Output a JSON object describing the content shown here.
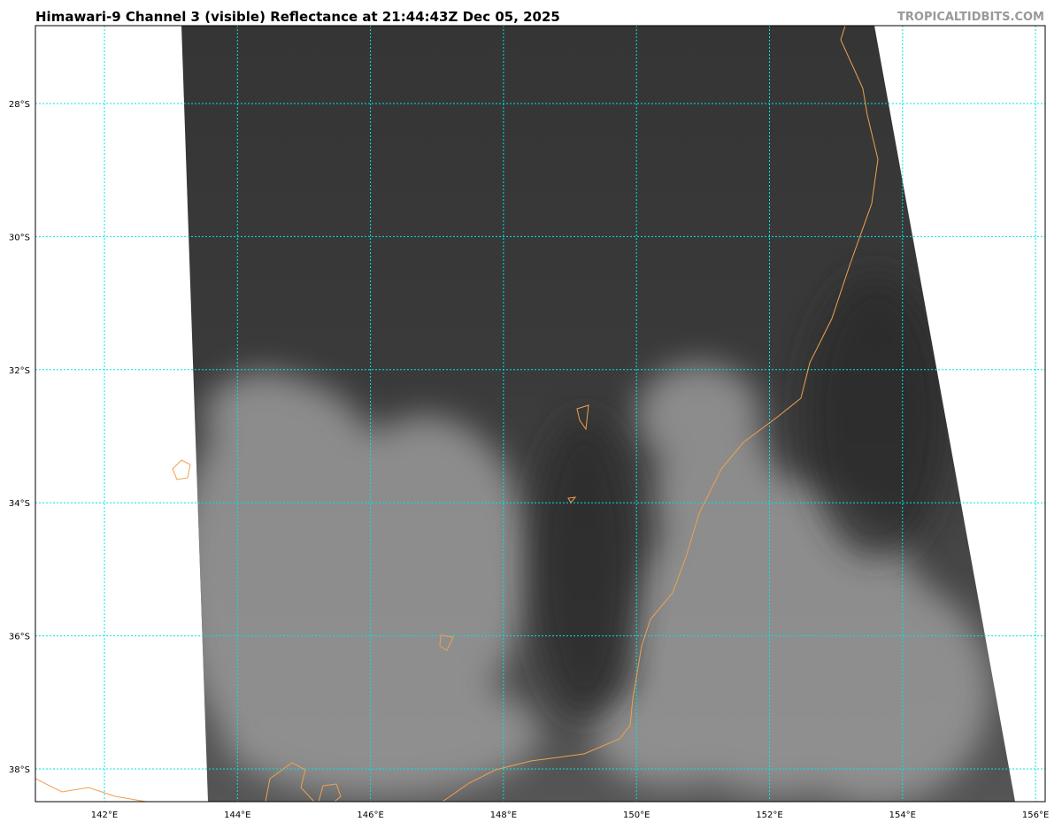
{
  "header": {
    "title": "Himawari-9 Channel 3 (visible) Reflectance at 21:44:43Z Dec 05, 2025",
    "brand": "TROPICALTIDBITS.COM"
  },
  "map": {
    "gridline_color": "#00e5e5",
    "coastline_color": "#f0a050",
    "lon_ticks": [
      "142°E",
      "144°E",
      "146°E",
      "148°E",
      "150°E",
      "152°E",
      "154°E",
      "156°E"
    ],
    "lat_ticks": [
      "28°S",
      "30°S",
      "32°S",
      "34°S",
      "36°S",
      "38°S"
    ]
  }
}
